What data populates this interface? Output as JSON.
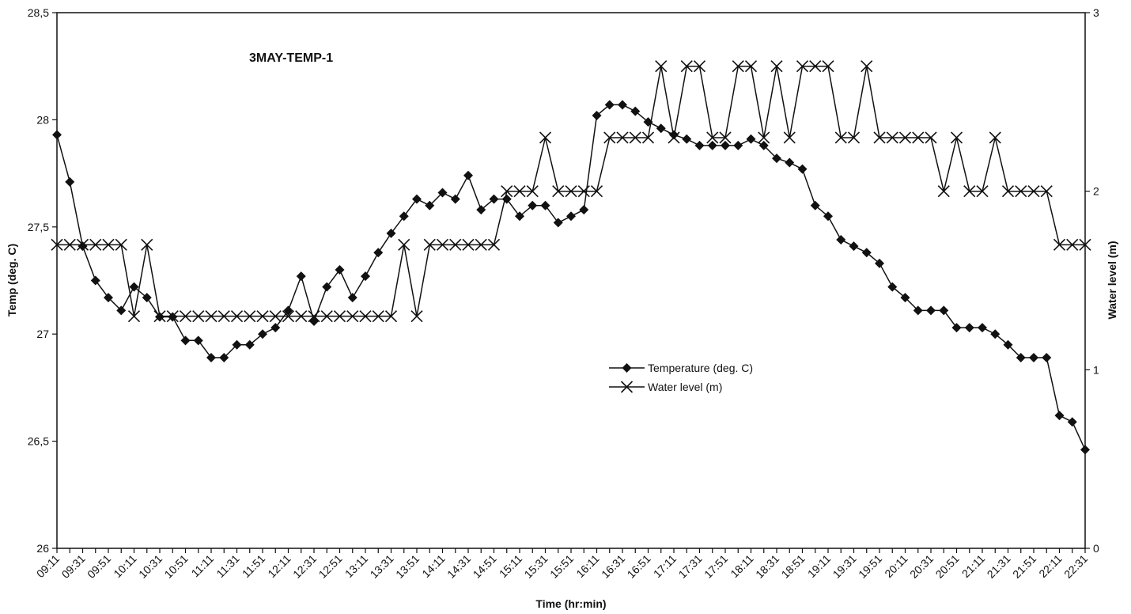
{
  "chart_data": {
    "type": "line",
    "title": "3MAY-TEMP-1",
    "xlabel": "Time (hr:min)",
    "ylabel": "Temp (deg. C)",
    "y2label": "Water level (m)",
    "ylim": [
      26,
      28.5
    ],
    "y2lim": [
      0,
      3
    ],
    "y_ticks": [
      "26",
      "26,5",
      "27",
      "27,5",
      "28",
      "28,5"
    ],
    "y2_ticks": [
      "0",
      "1",
      "2",
      "3"
    ],
    "grid": false,
    "legend_position": "center-right",
    "x_tick_labels": [
      "09:11",
      "09:31",
      "09:51",
      "10:11",
      "10:31",
      "10:51",
      "11:11",
      "11:31",
      "11:51",
      "12:11",
      "12:31",
      "12:51",
      "13:11",
      "13:31",
      "13:51",
      "14:11",
      "14:31",
      "14:51",
      "15:11",
      "15:31",
      "15:51",
      "16:11",
      "16:31",
      "16:51",
      "17:11",
      "17:31",
      "17:51",
      "18:11",
      "18:31",
      "18:51",
      "19:11",
      "19:31",
      "19:51",
      "20:11",
      "20:31",
      "20:51",
      "21:11",
      "21:31",
      "21:51",
      "22:11",
      "22:31"
    ],
    "x_tick_every": 2,
    "series": [
      {
        "name": "Temperature (deg. C)",
        "axis": "left",
        "marker": "diamond",
        "values": [
          27.93,
          27.71,
          27.41,
          27.25,
          27.17,
          27.11,
          27.22,
          27.17,
          27.08,
          27.08,
          26.97,
          26.97,
          26.89,
          26.89,
          26.95,
          26.95,
          27.0,
          27.03,
          27.11,
          27.27,
          27.06,
          27.22,
          27.3,
          27.17,
          27.27,
          27.38,
          27.47,
          27.55,
          27.63,
          27.6,
          27.66,
          27.63,
          27.74,
          27.58,
          27.63,
          27.63,
          27.55,
          27.6,
          27.6,
          27.52,
          27.55,
          27.58,
          28.02,
          28.07,
          28.07,
          28.04,
          27.99,
          27.96,
          27.93,
          27.91,
          27.88,
          27.88,
          27.88,
          27.88,
          27.91,
          27.88,
          27.82,
          27.8,
          27.77,
          27.6,
          27.55,
          27.44,
          27.41,
          27.38,
          27.33,
          27.22,
          27.17,
          27.11,
          27.11,
          27.11,
          27.03,
          27.03,
          27.03,
          27.0,
          26.95,
          26.89,
          26.89,
          26.89,
          26.62,
          26.59,
          26.46
        ]
      },
      {
        "name": "Water level (m)",
        "axis": "right",
        "marker": "x",
        "values": [
          1.7,
          1.7,
          1.7,
          1.7,
          1.7,
          1.7,
          1.3,
          1.7,
          1.3,
          1.3,
          1.3,
          1.3,
          1.3,
          1.3,
          1.3,
          1.3,
          1.3,
          1.3,
          1.3,
          1.3,
          1.3,
          1.3,
          1.3,
          1.3,
          1.3,
          1.3,
          1.3,
          1.7,
          1.3,
          1.7,
          1.7,
          1.7,
          1.7,
          1.7,
          1.7,
          2.0,
          2.0,
          2.0,
          2.3,
          2.0,
          2.0,
          2.0,
          2.0,
          2.3,
          2.3,
          2.3,
          2.3,
          2.7,
          2.3,
          2.7,
          2.7,
          2.3,
          2.3,
          2.7,
          2.7,
          2.3,
          2.7,
          2.3,
          2.7,
          2.7,
          2.7,
          2.3,
          2.3,
          2.7,
          2.3,
          2.3,
          2.3,
          2.3,
          2.3,
          2.0,
          2.3,
          2.0,
          2.0,
          2.3,
          2.0,
          2.0,
          2.0,
          2.0,
          1.7,
          1.7,
          1.7
        ]
      }
    ]
  }
}
